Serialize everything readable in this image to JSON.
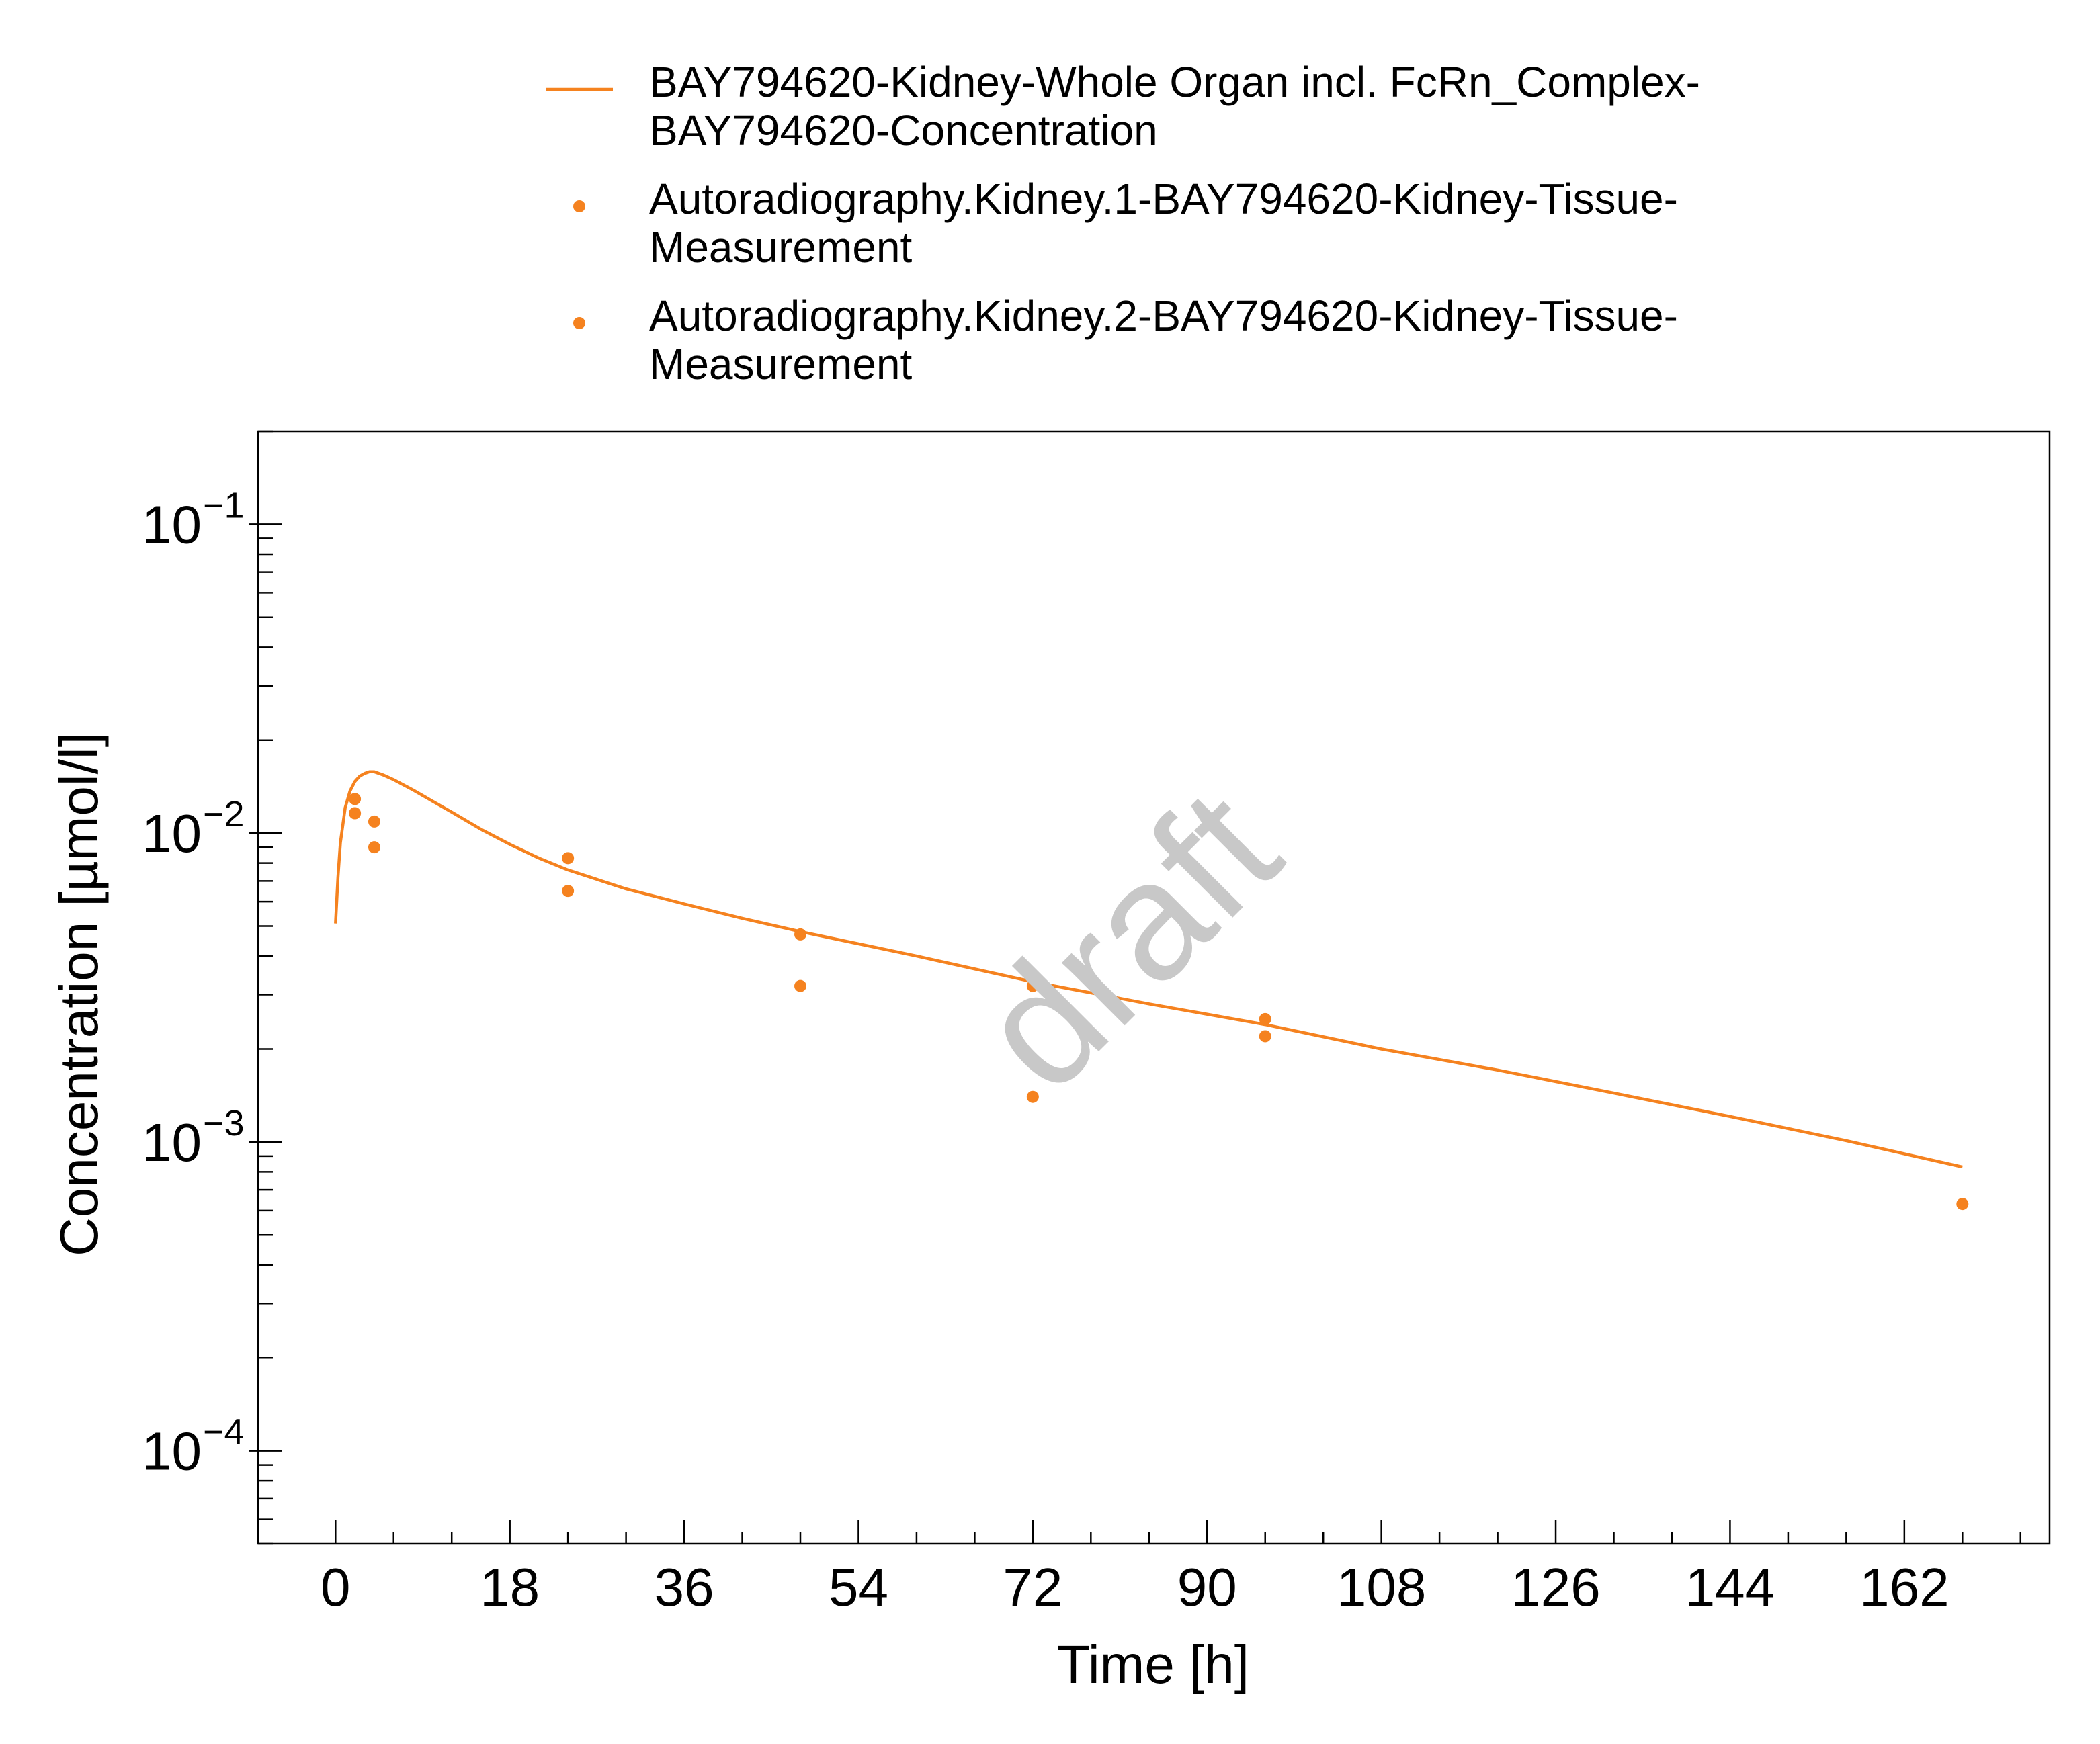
{
  "chart_data": {
    "type": "line",
    "title": "",
    "xlabel": "Time [h]",
    "ylabel": "Concentration [µmol/l]",
    "xlim": [
      -8,
      177
    ],
    "ylim": [
      5e-05,
      0.2
    ],
    "yscale": "log",
    "grid": false,
    "legend_position": "top",
    "watermark": "draft",
    "x_ticks": [
      "0",
      "18",
      "36",
      "54",
      "72",
      "90",
      "108",
      "126",
      "144",
      "162"
    ],
    "y_ticks": [
      {
        "base": "10",
        "exp": "−1",
        "value": 0.1
      },
      {
        "base": "10",
        "exp": "−2",
        "value": 0.01
      },
      {
        "base": "10",
        "exp": "−3",
        "value": 0.001
      },
      {
        "base": "10",
        "exp": "−4",
        "value": 0.0001
      }
    ],
    "series": [
      {
        "name": "BAY794620-Kidney-Whole Organ incl. FcRn_Complex-BAY794620-Concentration",
        "legend_lines": [
          "BAY794620-Kidney-Whole Organ incl. FcRn_Complex-",
          "BAY794620-Concentration"
        ],
        "kind": "line",
        "color": "#F5821F",
        "x": [
          0,
          0.25,
          0.5,
          1,
          1.5,
          2,
          2.5,
          3,
          3.5,
          4,
          5,
          6,
          8,
          10,
          12,
          15,
          18,
          21,
          24,
          30,
          36,
          42,
          48,
          60,
          72,
          84,
          96,
          108,
          120,
          132,
          144,
          156,
          168
        ],
        "y": [
          0.0051,
          0.0072,
          0.0093,
          0.0121,
          0.0137,
          0.0147,
          0.0153,
          0.0156,
          0.0158,
          0.0158,
          0.0154,
          0.0149,
          0.0138,
          0.0127,
          0.0117,
          0.0103,
          0.0092,
          0.0083,
          0.0076,
          0.0066,
          0.0059,
          0.0053,
          0.0048,
          0.004,
          0.0033,
          0.0028,
          0.0024,
          0.002,
          0.00171,
          0.00144,
          0.00121,
          0.00101,
          0.00083
        ]
      },
      {
        "name": "Autoradiography.Kidney.1-BAY794620-Kidney-Tissue-Measurement",
        "legend_lines": [
          "Autoradiography.Kidney.1-BAY794620-Kidney-Tissue-",
          "Measurement"
        ],
        "kind": "scatter",
        "color": "#F5821F",
        "x": [
          2,
          4,
          24,
          48,
          72,
          96,
          168
        ],
        "y": [
          0.0129,
          0.0109,
          0.0083,
          0.0047,
          0.0032,
          0.0025,
          0.00063
        ]
      },
      {
        "name": "Autoradiography.Kidney.2-BAY794620-Kidney-Tissue-Measurement",
        "legend_lines": [
          "Autoradiography.Kidney.2-BAY794620-Kidney-Tissue-",
          "Measurement"
        ],
        "kind": "scatter",
        "color": "#F5821F",
        "x": [
          2,
          4,
          24,
          48,
          72,
          96
        ],
        "y": [
          0.0116,
          0.009,
          0.0065,
          0.0032,
          0.0014,
          0.0022
        ]
      }
    ]
  }
}
